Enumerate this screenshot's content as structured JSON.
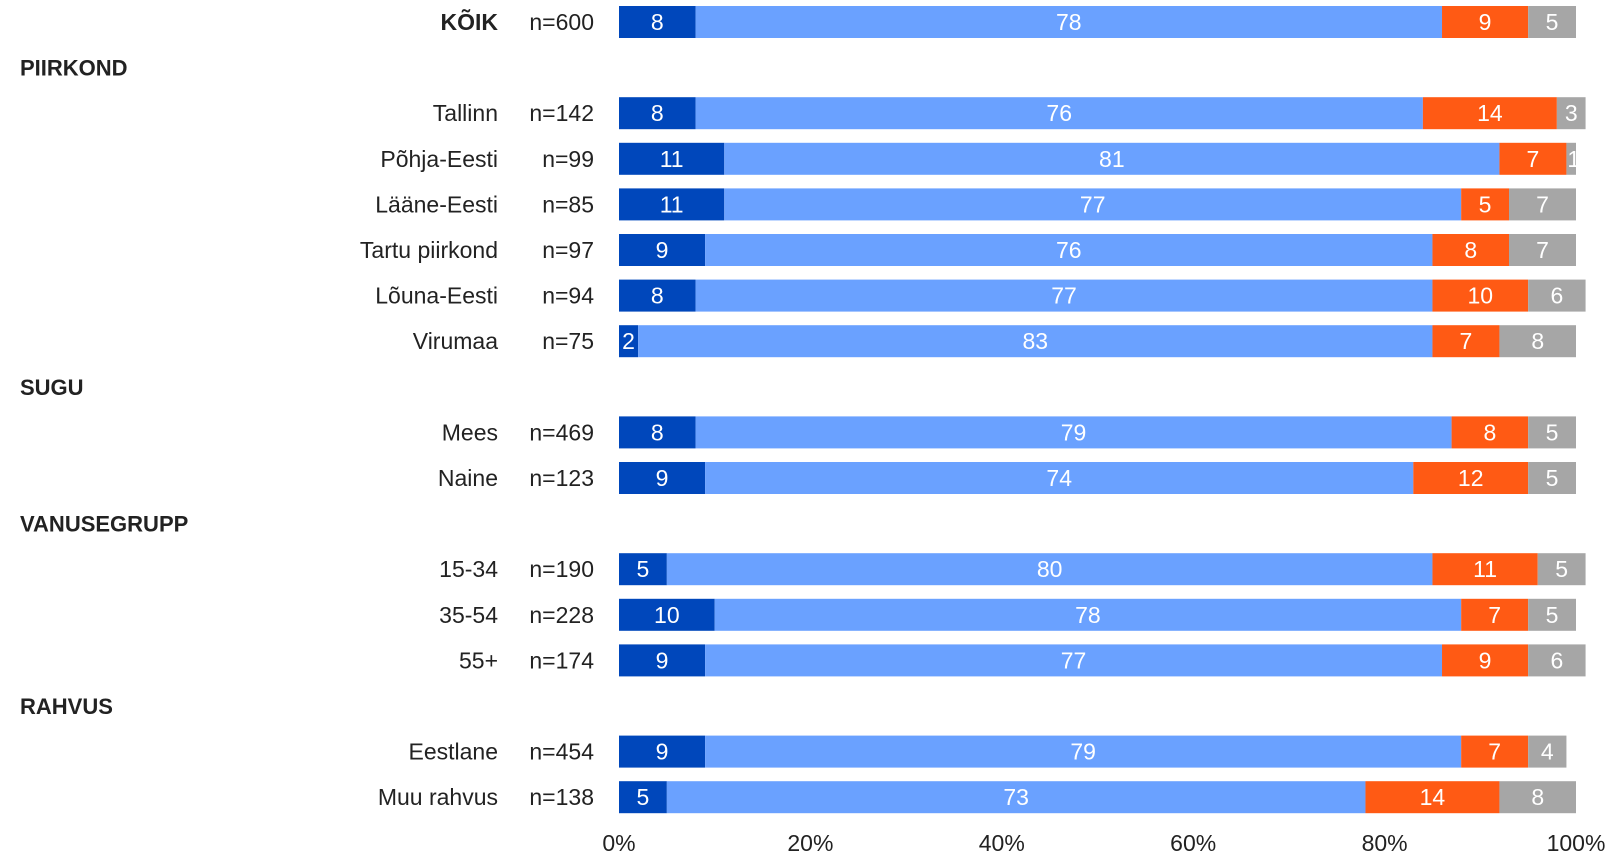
{
  "chart_data": {
    "type": "bar",
    "orientation": "horizontal",
    "stacked": true,
    "percent": true,
    "xlim": [
      0,
      100
    ],
    "x_ticks": [
      "0%",
      "20%",
      "40%",
      "60%",
      "80%",
      "100%"
    ],
    "segment_colors": [
      "#0047BB",
      "#6AA1FF",
      "#FF5A14",
      "#A6A6A6"
    ],
    "rows": [
      {
        "kind": "row",
        "label": "KÕIK",
        "n": "n=600",
        "bold": true,
        "values": [
          8,
          78,
          9,
          5
        ]
      },
      {
        "kind": "group",
        "label": "PIIRKOND"
      },
      {
        "kind": "row",
        "label": "Tallinn",
        "n": "n=142",
        "values": [
          8,
          76,
          14,
          3
        ]
      },
      {
        "kind": "row",
        "label": "Põhja-Eesti",
        "n": "n=99",
        "values": [
          11,
          81,
          7,
          1
        ]
      },
      {
        "kind": "row",
        "label": "Lääne-Eesti",
        "n": "n=85",
        "values": [
          11,
          77,
          5,
          7
        ]
      },
      {
        "kind": "row",
        "label": "Tartu piirkond",
        "n": "n=97",
        "values": [
          9,
          76,
          8,
          7
        ]
      },
      {
        "kind": "row",
        "label": "Lõuna-Eesti",
        "n": "n=94",
        "values": [
          8,
          77,
          10,
          6
        ]
      },
      {
        "kind": "row",
        "label": "Virumaa",
        "n": "n=75",
        "values": [
          2,
          83,
          7,
          8
        ]
      },
      {
        "kind": "group",
        "label": "SUGU"
      },
      {
        "kind": "row",
        "label": "Mees",
        "n": "n=469",
        "values": [
          8,
          79,
          8,
          5
        ]
      },
      {
        "kind": "row",
        "label": "Naine",
        "n": "n=123",
        "values": [
          9,
          74,
          12,
          5
        ]
      },
      {
        "kind": "group",
        "label": "VANUSEGRUPP"
      },
      {
        "kind": "row",
        "label": "15-34",
        "n": "n=190",
        "values": [
          5,
          80,
          11,
          5
        ]
      },
      {
        "kind": "row",
        "label": "35-54",
        "n": "n=228",
        "values": [
          10,
          78,
          7,
          5
        ]
      },
      {
        "kind": "row",
        "label": "55+",
        "n": "n=174",
        "values": [
          9,
          77,
          9,
          6
        ]
      },
      {
        "kind": "group",
        "label": "RAHVUS"
      },
      {
        "kind": "row",
        "label": "Eestlane",
        "n": "n=454",
        "values": [
          9,
          79,
          7,
          4
        ]
      },
      {
        "kind": "row",
        "label": "Muu rahvus",
        "n": "n=138",
        "values": [
          5,
          73,
          14,
          8
        ]
      }
    ]
  }
}
